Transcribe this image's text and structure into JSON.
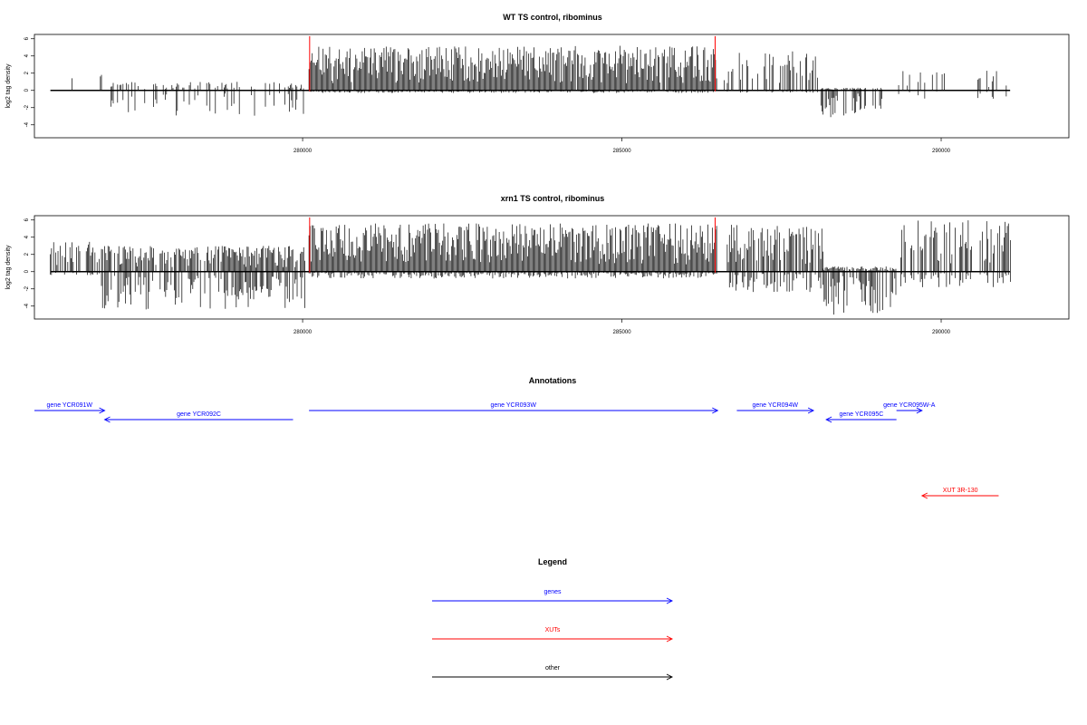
{
  "chart_data": [
    {
      "type": "bar",
      "title": "WT TS control, ribominus",
      "ylabel": "log2 tag density",
      "xlabel": "",
      "xlim": [
        275800,
        292000
      ],
      "ylim": [
        -5.5,
        6.5
      ],
      "yticks": [
        -4,
        -2,
        0,
        2,
        4,
        6
      ],
      "xticks": [
        280000,
        285000,
        290000
      ],
      "xtick_labels": [
        "280000",
        "285000",
        "290000"
      ],
      "span": [
        276050,
        291080
      ],
      "colors": {
        "bars": "#000000",
        "markers": "#ff0000"
      },
      "markers": [
        280110,
        286460
      ],
      "series_profile": {
        "description_note": "sparse",
        "regions": [
          {
            "start": 276050,
            "end": 277000,
            "pos": 2.3,
            "neg": 0.0,
            "density": 0.15
          },
          {
            "start": 277000,
            "end": 280050,
            "pos": 1.0,
            "neg": 3.0,
            "density": 0.35
          },
          {
            "start": 280100,
            "end": 286500,
            "pos": 5.2,
            "neg": 0.3,
            "density": 0.98
          },
          {
            "start": 286600,
            "end": 288100,
            "pos": 4.6,
            "neg": 0.3,
            "density": 0.5
          },
          {
            "start": 288100,
            "end": 289100,
            "pos": 0.3,
            "neg": 3.5,
            "density": 0.7
          },
          {
            "start": 289300,
            "end": 291080,
            "pos": 2.3,
            "neg": 1.0,
            "density": 0.12
          }
        ]
      }
    },
    {
      "type": "bar",
      "title": "xrn1 TS control, ribominus",
      "ylabel": "log2 tag density",
      "xlabel": "",
      "xlim": [
        275800,
        292000
      ],
      "ylim": [
        -5.5,
        6.5
      ],
      "yticks": [
        -4,
        -2,
        0,
        2,
        4,
        6
      ],
      "xticks": [
        280000,
        285000,
        290000
      ],
      "xtick_labels": [
        "280000",
        "285000",
        "290000"
      ],
      "span": [
        276050,
        291080
      ],
      "colors": {
        "bars": "#000000",
        "markers": "#ff0000"
      },
      "markers": [
        280110,
        286460
      ],
      "series_profile": {
        "regions": [
          {
            "start": 276050,
            "end": 276850,
            "pos": 3.5,
            "neg": 0.4,
            "density": 0.7
          },
          {
            "start": 276850,
            "end": 280050,
            "pos": 3.0,
            "neg": 4.5,
            "density": 0.85
          },
          {
            "start": 280100,
            "end": 286500,
            "pos": 5.6,
            "neg": 0.8,
            "density": 1.0
          },
          {
            "start": 286650,
            "end": 288150,
            "pos": 5.5,
            "neg": 2.5,
            "density": 0.75
          },
          {
            "start": 288150,
            "end": 289300,
            "pos": 0.6,
            "neg": 5.0,
            "density": 0.95
          },
          {
            "start": 289300,
            "end": 291100,
            "pos": 6.0,
            "neg": 1.8,
            "density": 0.55
          }
        ]
      }
    }
  ],
  "annotations": {
    "title": "Annotations",
    "features": [
      {
        "label": "gene YCR091W",
        "start": 275800,
        "end": 276900,
        "strand": "+",
        "row": 0,
        "color": "#0000ff"
      },
      {
        "label": "gene YCR092C",
        "start": 276900,
        "end": 279850,
        "strand": "-",
        "row": 1,
        "color": "#0000ff"
      },
      {
        "label": "gene YCR093W",
        "start": 280100,
        "end": 286500,
        "strand": "+",
        "row": 0,
        "color": "#0000ff"
      },
      {
        "label": "gene YCR094W",
        "start": 286800,
        "end": 288000,
        "strand": "+",
        "row": 0,
        "color": "#0000ff"
      },
      {
        "label": "gene YCR095C",
        "start": 288200,
        "end": 289300,
        "strand": "-",
        "row": 1,
        "color": "#0000ff"
      },
      {
        "label": "gene YCR095W-A",
        "start": 289300,
        "end": 289700,
        "strand": "+",
        "row": 0,
        "color": "#0000ff"
      },
      {
        "label": "XUT 3R-130",
        "start": 289700,
        "end": 290900,
        "strand": "-",
        "row": 2,
        "color": "#ff0000"
      }
    ]
  },
  "legend": {
    "title": "Legend",
    "items": [
      {
        "label": "genes",
        "color": "#0000ff"
      },
      {
        "label": "XUTs",
        "color": "#ff0000"
      },
      {
        "label": "other",
        "color": "#000000"
      }
    ]
  }
}
